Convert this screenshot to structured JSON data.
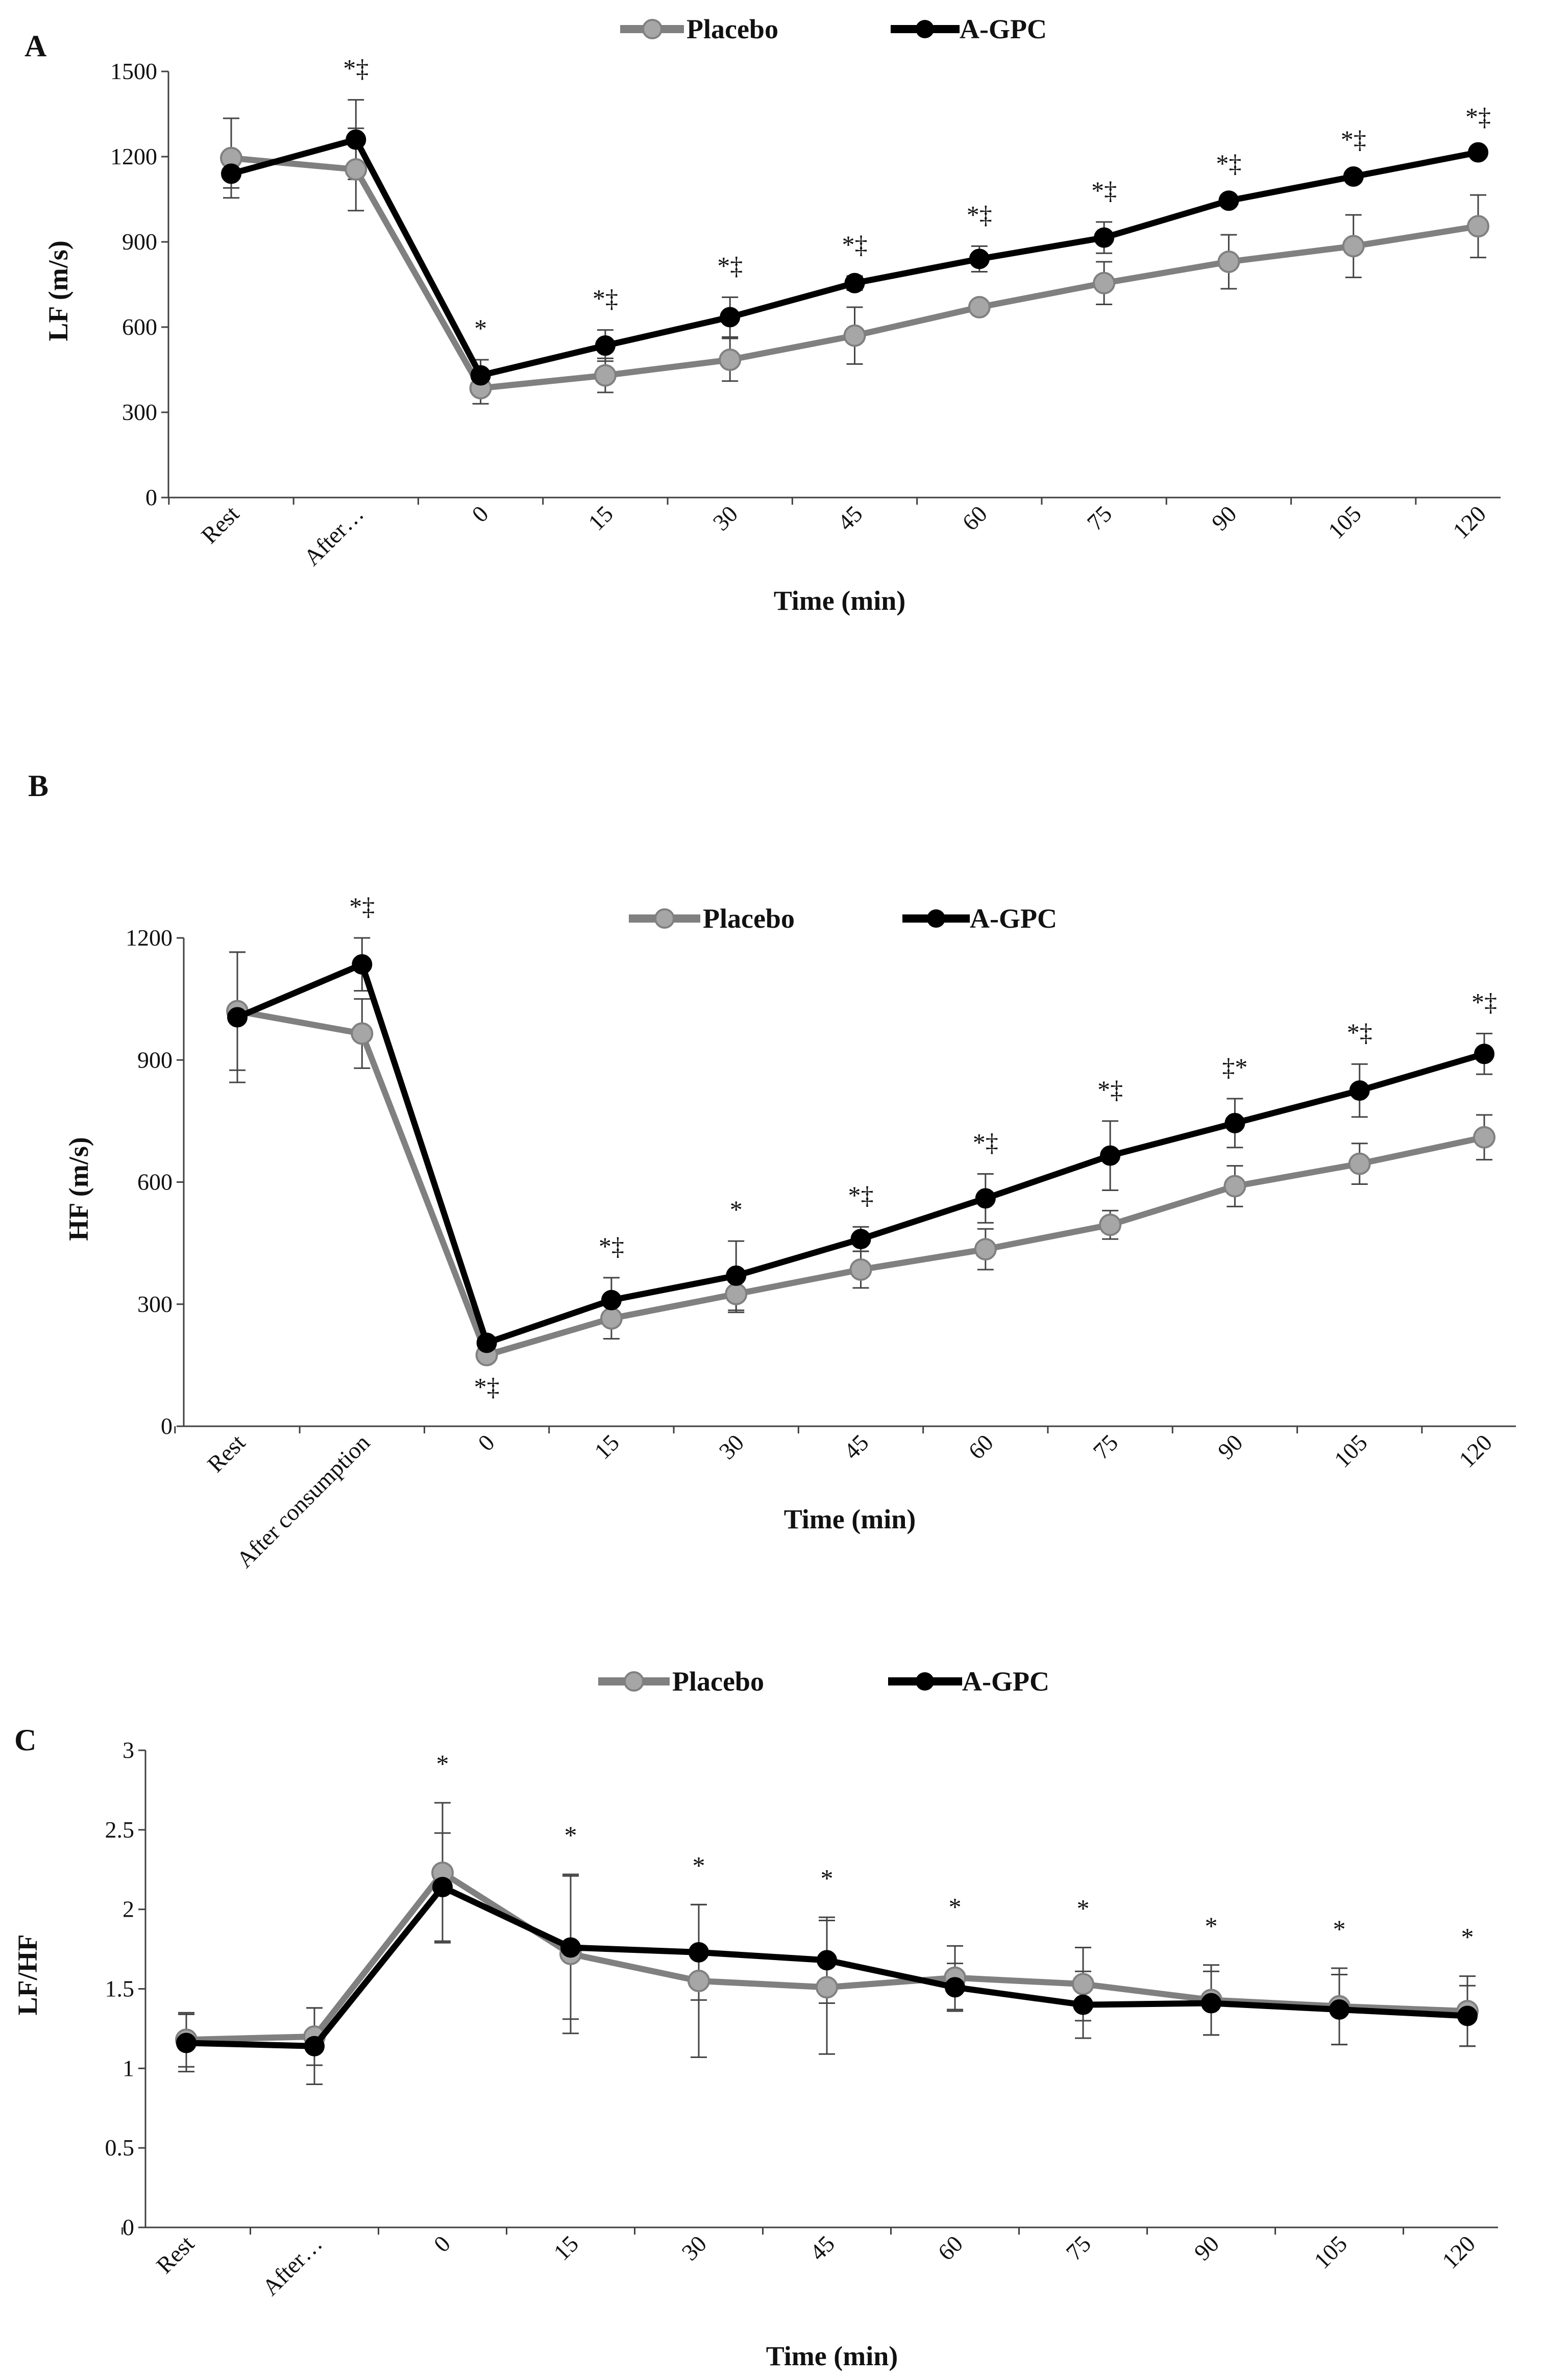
{
  "legend": {
    "placebo": "Placebo",
    "agpc": "A-GPC"
  },
  "colors": {
    "placebo_line": "#808080",
    "placebo_marker": "#a6a6a6",
    "agpc": "#000000",
    "axis": "#404040"
  },
  "chart_data": [
    {
      "panel": "A",
      "type": "line",
      "xlabel": "Time (min)",
      "ylabel": "LF (m/s)",
      "ylim": [
        0,
        1500
      ],
      "yticks": [
        "0",
        "300",
        "600",
        "900",
        "1200",
        "1500"
      ],
      "categories": [
        "Rest",
        "After…",
        "0",
        "15",
        "30",
        "45",
        "60",
        "75",
        "90",
        "105",
        "120"
      ],
      "series": [
        {
          "name": "Placebo",
          "values": [
            1195,
            1155,
            385,
            430,
            485,
            570,
            670,
            755,
            830,
            885,
            955
          ],
          "errors": [
            140,
            145,
            55,
            60,
            75,
            100,
            20,
            75,
            95,
            110,
            110
          ]
        },
        {
          "name": "A-GPC",
          "values": [
            1140,
            1260,
            430,
            535,
            635,
            755,
            840,
            915,
            1045,
            1130,
            1215
          ],
          "errors": [
            50,
            140,
            55,
            55,
            70,
            25,
            45,
            55,
            20,
            20,
            15
          ]
        }
      ],
      "annotations": [
        "",
        "*‡",
        "*",
        "*‡",
        "*‡",
        "*‡",
        "*‡",
        "*‡",
        "*‡",
        "*‡",
        "*‡"
      ]
    },
    {
      "panel": "B",
      "type": "line",
      "xlabel": "Time (min)",
      "ylabel": "HF (m/s)",
      "ylim": [
        0,
        1200
      ],
      "yticks": [
        "0",
        "300",
        "600",
        "900",
        "1200"
      ],
      "categories": [
        "Rest",
        "After consumption",
        "0",
        "15",
        "30",
        "45",
        "60",
        "75",
        "90",
        "105",
        "120"
      ],
      "series": [
        {
          "name": "Placebo",
          "values": [
            1020,
            965,
            175,
            265,
            325,
            385,
            435,
            495,
            590,
            645,
            710
          ],
          "errors": [
            145,
            85,
            15,
            50,
            45,
            45,
            50,
            35,
            50,
            50,
            55
          ]
        },
        {
          "name": "A-GPC",
          "values": [
            1005,
            1135,
            205,
            310,
            370,
            460,
            560,
            665,
            745,
            825,
            915
          ],
          "errors": [
            160,
            65,
            15,
            55,
            85,
            30,
            60,
            85,
            60,
            65,
            50
          ]
        }
      ],
      "annotations": [
        "",
        "*‡",
        "*‡",
        "*‡",
        "*",
        "*‡",
        "*‡",
        "*‡",
        "‡*",
        "*‡",
        "*‡"
      ]
    },
    {
      "panel": "C",
      "type": "line",
      "xlabel": "Time (min)",
      "ylabel": "LF/HF",
      "ylim": [
        0,
        3
      ],
      "yticks": [
        "0",
        "0.5",
        "1",
        "1.5",
        "2",
        "2.5",
        "3"
      ],
      "categories": [
        "Rest",
        "After…",
        "0",
        "15",
        "30",
        "45",
        "60",
        "75",
        "90",
        "105",
        "120"
      ],
      "series": [
        {
          "name": "Placebo",
          "values": [
            1.18,
            1.2,
            2.23,
            1.72,
            1.55,
            1.51,
            1.57,
            1.53,
            1.43,
            1.39,
            1.36
          ],
          "errors": [
            0.17,
            0.18,
            0.44,
            0.5,
            0.48,
            0.42,
            0.2,
            0.23,
            0.22,
            0.24,
            0.22
          ]
        },
        {
          "name": "A-GPC",
          "values": [
            1.16,
            1.14,
            2.14,
            1.76,
            1.73,
            1.68,
            1.51,
            1.4,
            1.41,
            1.37,
            1.33
          ],
          "errors": [
            0.18,
            0.24,
            0.34,
            0.45,
            0.3,
            0.27,
            0.15,
            0.21,
            0.2,
            0.22,
            0.19
          ]
        }
      ],
      "annotations": [
        "",
        "",
        "*",
        "*",
        "*",
        "*",
        "*",
        "*",
        "*",
        "*",
        "*"
      ]
    }
  ]
}
